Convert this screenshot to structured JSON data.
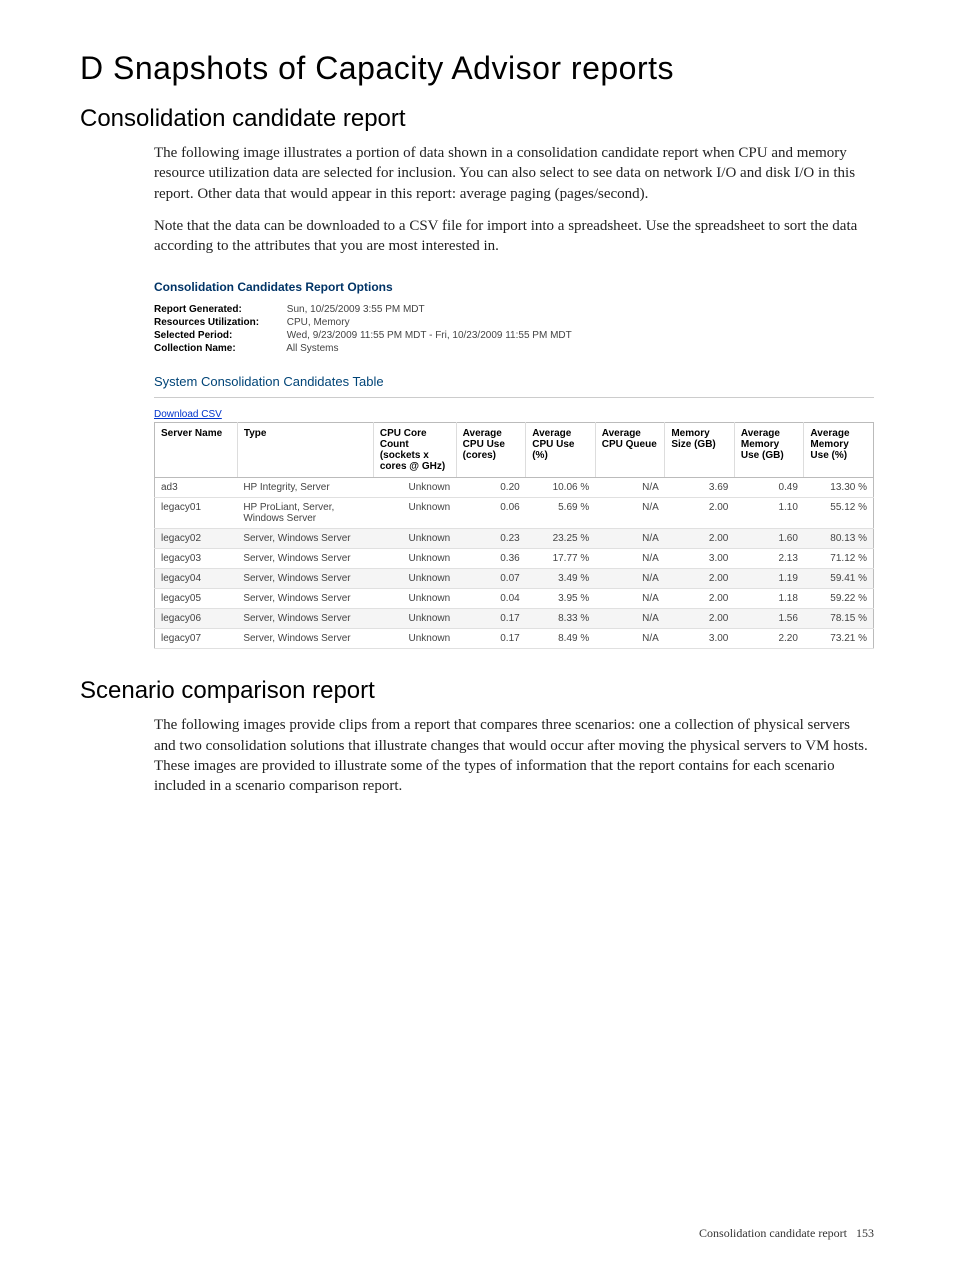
{
  "page": {
    "h1": "D Snapshots of Capacity Advisor reports",
    "section1_title": "Consolidation candidate report",
    "section1_p1": "The following image illustrates a portion of data shown in a consolidation candidate report when CPU and memory resource utilization data are selected for inclusion. You can also select to see data on network I/O and disk I/O in this report. Other data that would appear in this report: average paging (pages/second).",
    "section1_p2": "Note that the data can be downloaded to a CSV file for import into a spreadsheet. Use the spreadsheet to sort the data according to the attributes that you are most interested in.",
    "section2_title": "Scenario comparison report",
    "section2_p1": "The following images provide clips from a report that compares three scenarios: one a collection of physical servers and two consolidation solutions that illustrate changes that would occur after moving the physical servers to VM hosts. These images are provided to illustrate some of the types of information that the report contains for each scenario included in a scenario comparison report.",
    "footer_text": "Consolidation candidate report",
    "footer_page": "153"
  },
  "report": {
    "options_title": "Consolidation Candidates Report Options",
    "meta": {
      "generated_label": "Report Generated:",
      "generated_value": "Sun, 10/25/2009 3:55 PM MDT",
      "resources_label": "Resources Utilization:",
      "resources_value": "CPU, Memory",
      "period_label": "Selected Period:",
      "period_value": "Wed, 9/23/2009 11:55 PM MDT - Fri, 10/23/2009 11:55 PM MDT",
      "collection_label": "Collection Name:",
      "collection_value": "All Systems"
    },
    "table_title": "System Consolidation Candidates Table",
    "csv_link": "Download CSV",
    "columns": {
      "c0": "Server Name",
      "c1": "Type",
      "c2": "CPU Core Count (sockets x cores @ GHz)",
      "c3": "Average CPU Use (cores)",
      "c4": "Average CPU Use (%)",
      "c5": "Average CPU Queue",
      "c6": "Memory Size (GB)",
      "c7": "Average Memory Use (GB)",
      "c8": "Average Memory Use (%)"
    },
    "rows": [
      {
        "name": "ad3",
        "type": "HP Integrity, Server",
        "cpu_core": "Unknown",
        "avg_cpu_cores": "0.20",
        "avg_cpu_pct": "10.06 %",
        "avg_cpu_q": "N/A",
        "mem_size": "3.69",
        "avg_mem_gb": "0.49",
        "avg_mem_pct": "13.30 %"
      },
      {
        "name": "legacy01",
        "type": "HP ProLiant, Server, Windows Server",
        "cpu_core": "Unknown",
        "avg_cpu_cores": "0.06",
        "avg_cpu_pct": "5.69 %",
        "avg_cpu_q": "N/A",
        "mem_size": "2.00",
        "avg_mem_gb": "1.10",
        "avg_mem_pct": "55.12 %"
      },
      {
        "name": "legacy02",
        "type": "Server, Windows Server",
        "cpu_core": "Unknown",
        "avg_cpu_cores": "0.23",
        "avg_cpu_pct": "23.25 %",
        "avg_cpu_q": "N/A",
        "mem_size": "2.00",
        "avg_mem_gb": "1.60",
        "avg_mem_pct": "80.13 %"
      },
      {
        "name": "legacy03",
        "type": "Server, Windows Server",
        "cpu_core": "Unknown",
        "avg_cpu_cores": "0.36",
        "avg_cpu_pct": "17.77 %",
        "avg_cpu_q": "N/A",
        "mem_size": "3.00",
        "avg_mem_gb": "2.13",
        "avg_mem_pct": "71.12 %"
      },
      {
        "name": "legacy04",
        "type": "Server, Windows Server",
        "cpu_core": "Unknown",
        "avg_cpu_cores": "0.07",
        "avg_cpu_pct": "3.49 %",
        "avg_cpu_q": "N/A",
        "mem_size": "2.00",
        "avg_mem_gb": "1.19",
        "avg_mem_pct": "59.41 %"
      },
      {
        "name": "legacy05",
        "type": "Server, Windows Server",
        "cpu_core": "Unknown",
        "avg_cpu_cores": "0.04",
        "avg_cpu_pct": "3.95 %",
        "avg_cpu_q": "N/A",
        "mem_size": "2.00",
        "avg_mem_gb": "1.18",
        "avg_mem_pct": "59.22 %"
      },
      {
        "name": "legacy06",
        "type": "Server, Windows Server",
        "cpu_core": "Unknown",
        "avg_cpu_cores": "0.17",
        "avg_cpu_pct": "8.33 %",
        "avg_cpu_q": "N/A",
        "mem_size": "2.00",
        "avg_mem_gb": "1.56",
        "avg_mem_pct": "78.15 %"
      },
      {
        "name": "legacy07",
        "type": "Server, Windows Server",
        "cpu_core": "Unknown",
        "avg_cpu_cores": "0.17",
        "avg_cpu_pct": "8.49 %",
        "avg_cpu_q": "N/A",
        "mem_size": "3.00",
        "avg_mem_gb": "2.20",
        "avg_mem_pct": "73.21 %"
      }
    ]
  },
  "styling": {
    "background_color": "#ffffff",
    "heading_color": "#000000",
    "options_title_color": "#003366",
    "table_title_color": "#004477",
    "link_color": "#0033cc",
    "alt_row_color": "#f5f5f5",
    "border_color": "#bbbbbb"
  }
}
